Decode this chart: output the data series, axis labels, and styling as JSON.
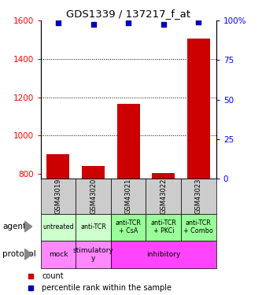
{
  "title": "GDS1339 / 137217_f_at",
  "samples": [
    "GSM43019",
    "GSM43020",
    "GSM43021",
    "GSM43022",
    "GSM43023"
  ],
  "counts": [
    900,
    840,
    1165,
    805,
    1505
  ],
  "percentile_ranks": [
    98.5,
    97.5,
    98.8,
    97.8,
    99.2
  ],
  "ylim_left": [
    775,
    1600
  ],
  "ylim_right": [
    0,
    100
  ],
  "yticks_left": [
    800,
    1000,
    1200,
    1400,
    1600
  ],
  "yticks_right": [
    0,
    25,
    50,
    75,
    100
  ],
  "bar_color": "#cc0000",
  "scatter_color": "#0000bb",
  "agent_data": [
    [
      0,
      1,
      "#ccffcc",
      "untreated"
    ],
    [
      1,
      1,
      "#ccffcc",
      "anti-TCR"
    ],
    [
      2,
      1,
      "#99ff99",
      "anti-TCR\n+ CsA"
    ],
    [
      3,
      1,
      "#99ff99",
      "anti-TCR\n+ PKCi"
    ],
    [
      4,
      1,
      "#99ff99",
      "anti-TCR\n+ Combo"
    ]
  ],
  "protocol_data": [
    [
      0,
      1,
      "#ff88ff",
      "mock"
    ],
    [
      1,
      1,
      "#ff88ff",
      "stimulatory\ny"
    ],
    [
      2,
      3,
      "#ff44ff",
      "inhibitory"
    ]
  ],
  "sample_bg_color": "#cccccc",
  "dotted_lines": [
    1000,
    1200,
    1400
  ],
  "grid_color": "black",
  "bar_bottom": 775
}
